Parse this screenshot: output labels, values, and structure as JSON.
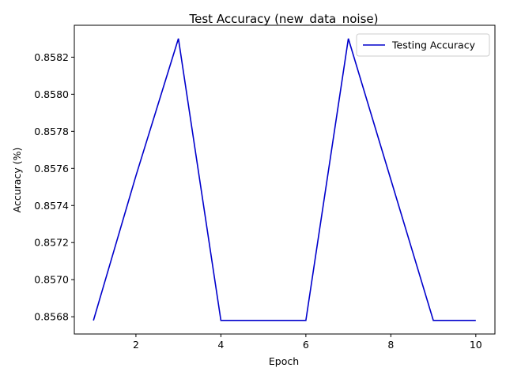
{
  "chart_data": {
    "type": "line",
    "title": "Test Accuracy (new_data_noise)",
    "xlabel": "Epoch",
    "ylabel": "Accuracy (%)",
    "x": [
      1,
      2,
      3,
      4,
      5,
      6,
      7,
      8,
      9,
      10
    ],
    "series": [
      {
        "name": "Testing Accuracy",
        "color": "#0000cc",
        "values": [
          0.85678,
          0.85756,
          0.8583,
          0.85678,
          0.85678,
          0.85678,
          0.8583,
          0.85754,
          0.85678,
          0.85678
        ]
      }
    ],
    "xticks": [
      2,
      4,
      6,
      8,
      10
    ],
    "xtick_labels": [
      "2",
      "4",
      "6",
      "8",
      "10"
    ],
    "yticks": [
      0.8568,
      0.857,
      0.8572,
      0.8574,
      0.8576,
      0.8578,
      0.858,
      0.8582
    ],
    "ytick_labels": [
      "0.8568",
      "0.8570",
      "0.8572",
      "0.8574",
      "0.8576",
      "0.8578",
      "0.8580",
      "0.8582"
    ],
    "xlim": [
      0.55,
      10.45
    ],
    "ylim": [
      0.856707,
      0.858372
    ],
    "grid": false,
    "legend_position": "upper right"
  }
}
